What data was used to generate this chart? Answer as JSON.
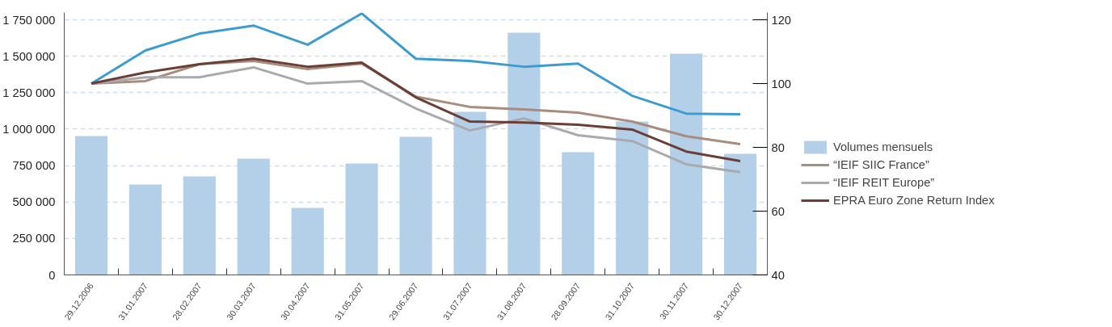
{
  "chart_data": {
    "type": "bar",
    "categories": [
      "29.12.2006",
      "31.01.2007",
      "28.02.2007",
      "30.03.2007",
      "30.04.2007",
      "31.05.2007",
      "29.06.2007",
      "31.07.2007",
      "31.08.2007",
      "28.09.2007",
      "31.10.2007",
      "30.11.2007",
      "30.12.2007"
    ],
    "series": [
      {
        "name": "Volumes mensuels",
        "color": "#b3d0e8",
        "values": [
          952000,
          620000,
          676000,
          797000,
          460000,
          764000,
          947000,
          1119000,
          1661000,
          842000,
          1052000,
          1517000,
          831000
        ]
      },
      {
        "type": "line",
        "axis": "y2",
        "color": "#3d9ccf",
        "values": [
          100,
          110.4,
          115.7,
          118.2,
          112.2,
          122.0,
          107.8,
          107.1,
          105.3,
          106.3,
          96.2,
          90.6,
          90.4
        ]
      },
      {
        "name": "“IEIF SIIC France”",
        "type": "line",
        "axis": "y2",
        "color": "#a88c7e",
        "values": [
          100,
          100.8,
          106.1,
          107.1,
          104.6,
          106.3,
          95.9,
          92.7,
          91.9,
          90.9,
          88.1,
          83.5,
          81.0
        ]
      },
      {
        "name": "“IEIF REIT Europe”",
        "type": "line",
        "axis": "y2",
        "color": "#aaaaae",
        "values": [
          100,
          102.0,
          102.0,
          105.1,
          100,
          100.8,
          92.2,
          85.3,
          89.1,
          83.8,
          82.0,
          74.7,
          72.2
        ]
      },
      {
        "name": "EPRA Euro Zone Return Index",
        "type": "line",
        "axis": "y2",
        "color": "#6b3f35",
        "values": [
          100,
          103.5,
          106.1,
          107.8,
          105.3,
          106.6,
          95.7,
          88.1,
          87.8,
          87.1,
          85.6,
          78.7,
          75.7
        ]
      }
    ],
    "ylim": [
      0,
      1800000
    ],
    "yticks": [
      {
        "value": 0,
        "label": "0"
      },
      {
        "value": 250000,
        "label": "250 000"
      },
      {
        "value": 500000,
        "label": "500 000"
      },
      {
        "value": 750000,
        "label": "750 000"
      },
      {
        "value": 1000000,
        "label": "1 000 000"
      },
      {
        "value": 1250000,
        "label": "1 250 000"
      },
      {
        "value": 1500000,
        "label": "1 500 000"
      },
      {
        "value": 1750000,
        "label": "1 750 000"
      }
    ],
    "y2lim": [
      40,
      122.3
    ],
    "y2ticks": [
      40,
      60,
      80,
      100,
      120
    ],
    "grid": "y",
    "legend": "right",
    "line_style": "solid",
    "marker": "none"
  }
}
